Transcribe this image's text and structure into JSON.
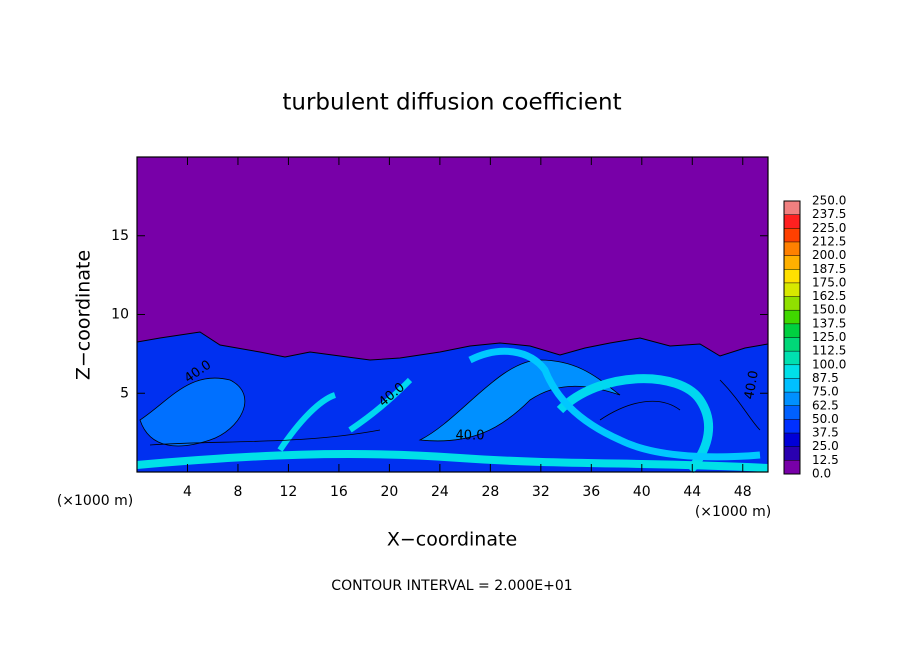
{
  "chart_data": {
    "type": "contour",
    "title": "turbulent diffusion coefficient",
    "xlabel": "X−coordinate",
    "ylabel": "Z−coordinate",
    "x_unit": "(×1000 m)",
    "x_unit_right": "(×1000 m)",
    "footnote": "CONTOUR INTERVAL = 2.000E+01",
    "xlim": [
      0,
      50
    ],
    "ylim": [
      0,
      20
    ],
    "xticks": [
      4,
      8,
      12,
      16,
      20,
      24,
      28,
      32,
      36,
      40,
      44,
      48
    ],
    "yticks": [
      5,
      10,
      15
    ],
    "contour_labels": [
      "40.0",
      "40.0",
      "40.0",
      "40.0"
    ],
    "levels": [
      {
        "value": 0,
        "label": "0.0"
      },
      {
        "value": 12.5,
        "label": "12.5"
      },
      {
        "value": 25,
        "label": "25.0"
      },
      {
        "value": 37.5,
        "label": "37.5"
      },
      {
        "value": 50,
        "label": "50.0"
      },
      {
        "value": 62.5,
        "label": "62.5"
      },
      {
        "value": 75,
        "label": "75.0"
      },
      {
        "value": 87.5,
        "label": "87.5"
      },
      {
        "value": 100,
        "label": "100.0"
      },
      {
        "value": 112.5,
        "label": "112.5"
      },
      {
        "value": 125,
        "label": "125.0"
      },
      {
        "value": 137.5,
        "label": "137.5"
      },
      {
        "value": 150,
        "label": "150.0"
      },
      {
        "value": 162.5,
        "label": "162.5"
      },
      {
        "value": 175,
        "label": "175.0"
      },
      {
        "value": 187.5,
        "label": "187.5"
      },
      {
        "value": 200,
        "label": "200.0"
      },
      {
        "value": 212.5,
        "label": "212.5"
      },
      {
        "value": 225,
        "label": "225.0"
      },
      {
        "value": 237.5,
        "label": "237.5"
      },
      {
        "value": 250,
        "label": "250.0"
      }
    ],
    "level_colors": [
      "#7800a8",
      "#2a00b0",
      "#0000d8",
      "#0030ff",
      "#0060ff",
      "#0090ff",
      "#00c0ff",
      "#00e0e8",
      "#00e0b0",
      "#00d878",
      "#00d040",
      "#40d800",
      "#90e000",
      "#d8e800",
      "#ffe000",
      "#ffb000",
      "#ff8000",
      "#ff4000",
      "#ff2020",
      "#f08080"
    ]
  }
}
